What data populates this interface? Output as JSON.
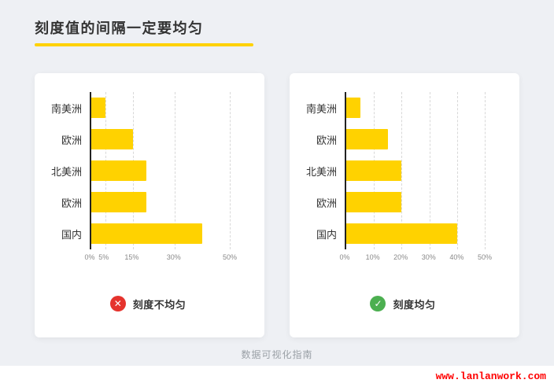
{
  "title": "刻度值的间隔一定要均匀",
  "icons": {
    "cross": "✕",
    "check": "✓"
  },
  "colors": {
    "underline": "#FFD200",
    "bar": "#FFD200",
    "bad": "#E5332D",
    "good": "#4CAF50",
    "watermark": "#FF0000"
  },
  "cards": [
    {
      "caption": "刻度不均匀",
      "verdict": "bad"
    },
    {
      "caption": "刻度均匀",
      "verdict": "good"
    }
  ],
  "footer": {
    "note": "数据可视化指南",
    "watermark": "www.lanlanwork.com"
  },
  "chart_data": [
    {
      "type": "bar",
      "orientation": "horizontal",
      "title": "刻度不均匀",
      "categories": [
        "南美洲",
        "欧洲",
        "北美洲",
        "欧洲",
        "国内"
      ],
      "values": [
        5,
        15,
        20,
        20,
        40
      ],
      "unit": "%",
      "xlim": [
        0,
        50
      ],
      "tick_interval": "uneven",
      "ticks": [
        {
          "value": 0,
          "label": "0%"
        },
        {
          "value": 5,
          "label": "5%"
        },
        {
          "value": 15,
          "label": "15%"
        },
        {
          "value": 30,
          "label": "30%"
        },
        {
          "value": 50,
          "label": "50%"
        }
      ],
      "bar_color": "#FFD200",
      "grid": "dashed-vertical",
      "legend": "none"
    },
    {
      "type": "bar",
      "orientation": "horizontal",
      "title": "刻度均匀",
      "categories": [
        "南美洲",
        "欧洲",
        "北美洲",
        "欧洲",
        "国内"
      ],
      "values": [
        5,
        15,
        20,
        20,
        40
      ],
      "unit": "%",
      "xlim": [
        0,
        50
      ],
      "tick_interval": "even",
      "ticks": [
        {
          "value": 0,
          "label": "0%"
        },
        {
          "value": 10,
          "label": "10%"
        },
        {
          "value": 20,
          "label": "20%"
        },
        {
          "value": 30,
          "label": "30%"
        },
        {
          "value": 40,
          "label": "40%"
        },
        {
          "value": 50,
          "label": "50%"
        }
      ],
      "bar_color": "#FFD200",
      "grid": "dashed-vertical",
      "legend": "none"
    }
  ]
}
